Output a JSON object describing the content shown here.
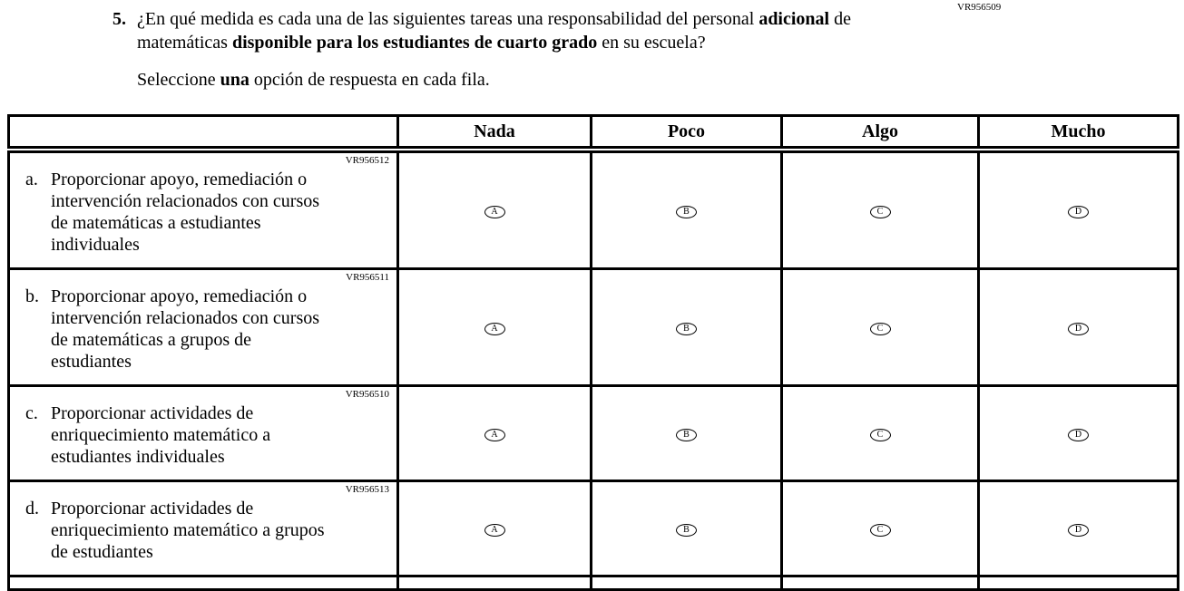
{
  "page": {
    "form_code": "VR956509"
  },
  "question": {
    "number": "5.",
    "segments": [
      {
        "text": "¿En qué medida es cada una de las siguientes tareas una responsabilidad del personal ",
        "bold": false
      },
      {
        "text": "adicional",
        "bold": true
      },
      {
        "text": " de matemáticas ",
        "bold": false
      },
      {
        "text": "disponible para los estudiantes de cuarto grado",
        "bold": true
      },
      {
        "text": " en su escuela?",
        "bold": false
      }
    ],
    "instruction_segments": [
      {
        "text": "Seleccione ",
        "bold": false
      },
      {
        "text": "una",
        "bold": true
      },
      {
        "text": " opción de respuesta en cada fila.",
        "bold": false
      }
    ]
  },
  "table": {
    "columns": [
      "Nada",
      "Poco",
      "Algo",
      "Mucho"
    ],
    "options": [
      "A",
      "B",
      "C",
      "D"
    ],
    "rows": [
      {
        "code": "VR956512",
        "letter": "a.",
        "label": "Proporcionar apoyo, remediación o intervención relacionados con cursos de matemáticas a estudiantes individuales",
        "label_lines": [
          "Proporcionar apoyo, remediación o",
          "intervención relacionados con cursos",
          "de matemáticas a estudiantes",
          "individuales"
        ]
      },
      {
        "code": "VR956511",
        "letter": "b.",
        "label": "Proporcionar apoyo, remediación o intervención relacionados con cursos de matemáticas a grupos de estudiantes",
        "label_lines": [
          "Proporcionar apoyo, remediación o",
          "intervención relacionados con cursos",
          "de matemáticas a grupos de",
          "estudiantes"
        ]
      },
      {
        "code": "VR956510",
        "letter": "c.",
        "label": "Proporcionar actividades de enriquecimiento matemático a estudiantes individuales",
        "label_lines": [
          "Proporcionar actividades de",
          "enriquecimiento matemático a",
          "estudiantes individuales"
        ]
      },
      {
        "code": "VR956513",
        "letter": "d.",
        "label": "Proporcionar actividades de enriquecimiento matemático a grupos de estudiantes",
        "label_lines": [
          "Proporcionar actividades de",
          "enriquecimiento matemático a grupos",
          "de estudiantes"
        ]
      }
    ]
  }
}
